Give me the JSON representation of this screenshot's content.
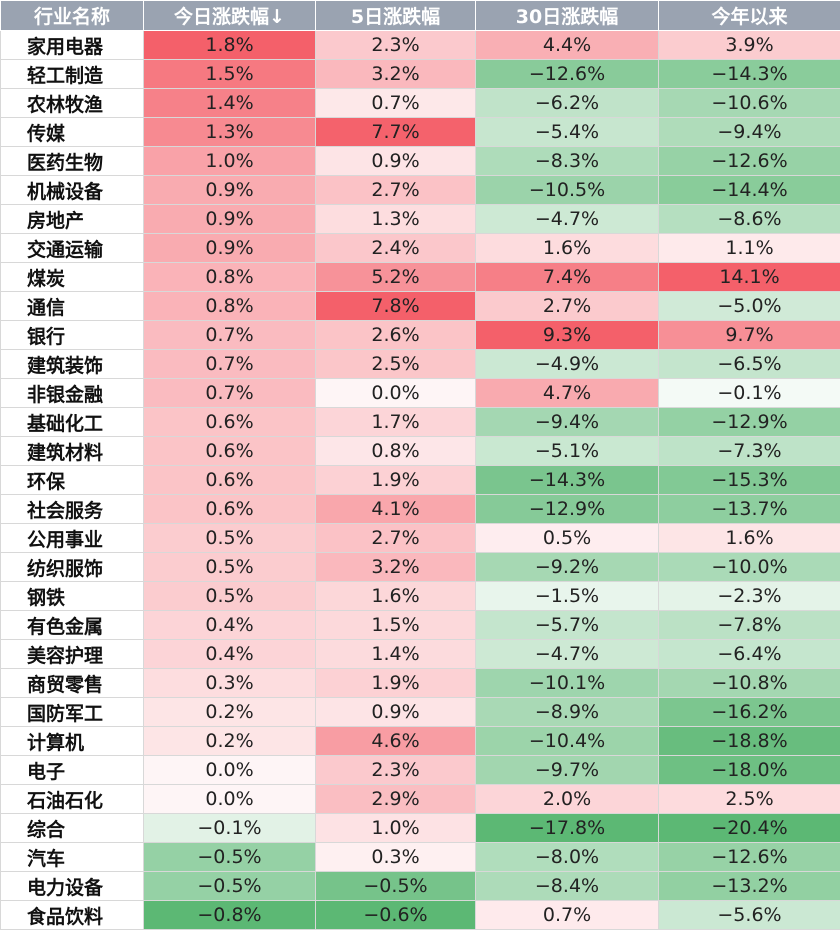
{
  "chart_data": {
    "type": "table",
    "columns": [
      "行业名称",
      "今日涨跌幅↓",
      "5日涨跌幅",
      "30日涨跌幅",
      "今年以来"
    ],
    "rows": [
      {
        "name": "家用电器",
        "values": [
          "1.8%",
          "2.3%",
          "4.4%",
          "3.9%"
        ]
      },
      {
        "name": "轻工制造",
        "values": [
          "1.5%",
          "3.2%",
          "−12.6%",
          "−14.3%"
        ]
      },
      {
        "name": "农林牧渔",
        "values": [
          "1.4%",
          "0.7%",
          "−6.2%",
          "−10.6%"
        ]
      },
      {
        "name": "传媒",
        "values": [
          "1.3%",
          "7.7%",
          "−5.4%",
          "−9.4%"
        ]
      },
      {
        "name": "医药生物",
        "values": [
          "1.0%",
          "0.9%",
          "−8.3%",
          "−12.6%"
        ]
      },
      {
        "name": "机械设备",
        "values": [
          "0.9%",
          "2.7%",
          "−10.5%",
          "−14.4%"
        ]
      },
      {
        "name": "房地产",
        "values": [
          "0.9%",
          "1.3%",
          "−4.7%",
          "−8.6%"
        ]
      },
      {
        "name": "交通运输",
        "values": [
          "0.9%",
          "2.4%",
          "1.6%",
          "1.1%"
        ]
      },
      {
        "name": "煤炭",
        "values": [
          "0.8%",
          "5.2%",
          "7.4%",
          "14.1%"
        ]
      },
      {
        "name": "通信",
        "values": [
          "0.8%",
          "7.8%",
          "2.7%",
          "−5.0%"
        ]
      },
      {
        "name": "银行",
        "values": [
          "0.7%",
          "2.6%",
          "9.3%",
          "9.7%"
        ]
      },
      {
        "name": "建筑装饰",
        "values": [
          "0.7%",
          "2.5%",
          "−4.9%",
          "−6.5%"
        ]
      },
      {
        "name": "非银金融",
        "values": [
          "0.7%",
          "0.0%",
          "4.7%",
          "−0.1%"
        ]
      },
      {
        "name": "基础化工",
        "values": [
          "0.6%",
          "1.7%",
          "−9.4%",
          "−12.9%"
        ]
      },
      {
        "name": "建筑材料",
        "values": [
          "0.6%",
          "0.8%",
          "−5.1%",
          "−7.3%"
        ]
      },
      {
        "name": "环保",
        "values": [
          "0.6%",
          "1.9%",
          "−14.3%",
          "−15.3%"
        ]
      },
      {
        "name": "社会服务",
        "values": [
          "0.6%",
          "4.1%",
          "−12.9%",
          "−13.7%"
        ]
      },
      {
        "name": "公用事业",
        "values": [
          "0.5%",
          "2.7%",
          "0.5%",
          "1.6%"
        ]
      },
      {
        "name": "纺织服饰",
        "values": [
          "0.5%",
          "3.2%",
          "−9.2%",
          "−10.0%"
        ]
      },
      {
        "name": "钢铁",
        "values": [
          "0.5%",
          "1.6%",
          "−1.5%",
          "−2.3%"
        ]
      },
      {
        "name": "有色金属",
        "values": [
          "0.4%",
          "1.5%",
          "−5.7%",
          "−7.8%"
        ]
      },
      {
        "name": "美容护理",
        "values": [
          "0.4%",
          "1.4%",
          "−4.7%",
          "−6.4%"
        ]
      },
      {
        "name": "商贸零售",
        "values": [
          "0.3%",
          "1.9%",
          "−10.1%",
          "−10.8%"
        ]
      },
      {
        "name": "国防军工",
        "values": [
          "0.2%",
          "0.9%",
          "−8.9%",
          "−16.2%"
        ]
      },
      {
        "name": "计算机",
        "values": [
          "0.2%",
          "4.6%",
          "−10.4%",
          "−18.8%"
        ]
      },
      {
        "name": "电子",
        "values": [
          "0.0%",
          "2.3%",
          "−9.7%",
          "−18.0%"
        ]
      },
      {
        "name": "石油石化",
        "values": [
          "0.0%",
          "2.9%",
          "2.0%",
          "2.5%"
        ]
      },
      {
        "name": "综合",
        "values": [
          "−0.1%",
          "1.0%",
          "−17.8%",
          "−20.4%"
        ]
      },
      {
        "name": "汽车",
        "values": [
          "−0.5%",
          "0.3%",
          "−8.0%",
          "−12.6%"
        ]
      },
      {
        "name": "电力设备",
        "values": [
          "−0.5%",
          "−0.5%",
          "−8.4%",
          "−13.2%"
        ]
      },
      {
        "name": "食品饮料",
        "values": [
          "−0.8%",
          "−0.6%",
          "0.7%",
          "−5.6%"
        ]
      }
    ],
    "heat_colors": {
      "positive_max": "#f4606a",
      "negative_max": "#5cb874",
      "neutral": "#ffffff",
      "header_bg": "#9aa3b1",
      "header_text": "#ffffff"
    }
  }
}
